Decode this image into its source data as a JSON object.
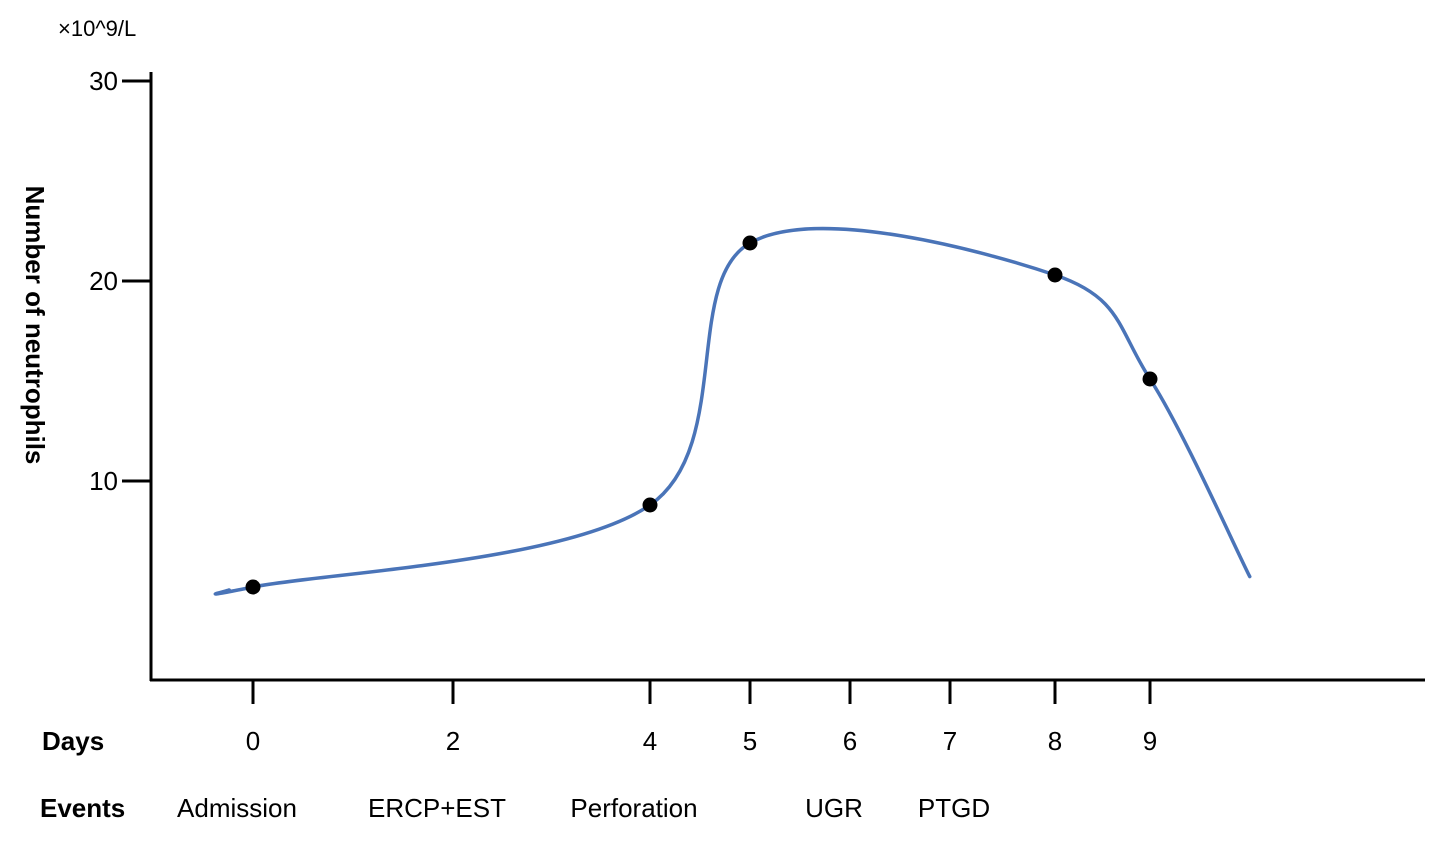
{
  "chart_data": {
    "type": "line",
    "unit_label": "×10^9/L",
    "ylabel": "Number of neutrophils",
    "xlabel": "Days",
    "events_label": "Events",
    "ylim": [
      0,
      30
    ],
    "y_ticks": [
      10,
      20,
      30
    ],
    "y_tick_labels": [
      "10",
      "20",
      "30"
    ],
    "x_ticks": [
      0,
      2,
      4,
      5,
      6,
      7,
      8,
      9
    ],
    "x_tick_labels": [
      "0",
      "2",
      "4",
      "5",
      "6",
      "7",
      "8",
      "9"
    ],
    "grid": false,
    "line_color": "#4a74b8",
    "marker_color": "#000000",
    "points": [
      {
        "day": 0,
        "value": 4.7
      },
      {
        "day": 4,
        "value": 8.8
      },
      {
        "day": 5,
        "value": 21.9
      },
      {
        "day": 8,
        "value": 20.3
      },
      {
        "day": 9,
        "value": 15.1
      }
    ],
    "events": [
      {
        "label": "Admission",
        "day": 0
      },
      {
        "label": "ERCP+EST",
        "day": 2
      },
      {
        "label": "Perforation",
        "day": 4
      },
      {
        "label": "UGR",
        "day": 6
      },
      {
        "label": "PTGD",
        "day": 7
      }
    ]
  }
}
